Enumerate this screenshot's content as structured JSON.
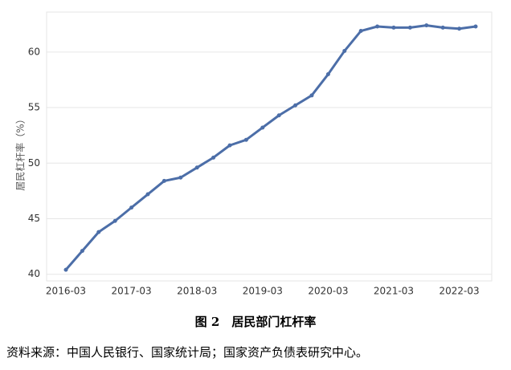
{
  "chart_data": {
    "type": "line",
    "y_label": "居民杠杆率（%）",
    "caption": "图 2　居民部门杠杆率",
    "source": "资料来源：中国人民银行、国家统计局；国家资产负债表研究中心。",
    "categories": [
      "2016-03",
      null,
      null,
      null,
      "2017-03",
      null,
      null,
      null,
      "2018-03",
      null,
      null,
      null,
      "2019-03",
      null,
      null,
      null,
      "2020-03",
      null,
      null,
      null,
      "2021-03",
      null,
      null,
      null,
      "2022-03",
      null
    ],
    "series": [
      {
        "color": "#4c6ea8",
        "values": [
          40.4,
          42.1,
          43.8,
          44.8,
          46.0,
          47.2,
          48.4,
          48.7,
          49.6,
          50.5,
          51.6,
          52.1,
          53.2,
          54.3,
          55.2,
          56.1,
          58.0,
          60.1,
          61.9,
          62.3,
          62.2,
          62.2,
          62.4,
          62.2,
          62.1,
          62.3
        ]
      }
    ],
    "ylim": [
      39.4,
      63.6
    ],
    "yticks": [
      40,
      45,
      50,
      55,
      60
    ],
    "grid": true
  }
}
